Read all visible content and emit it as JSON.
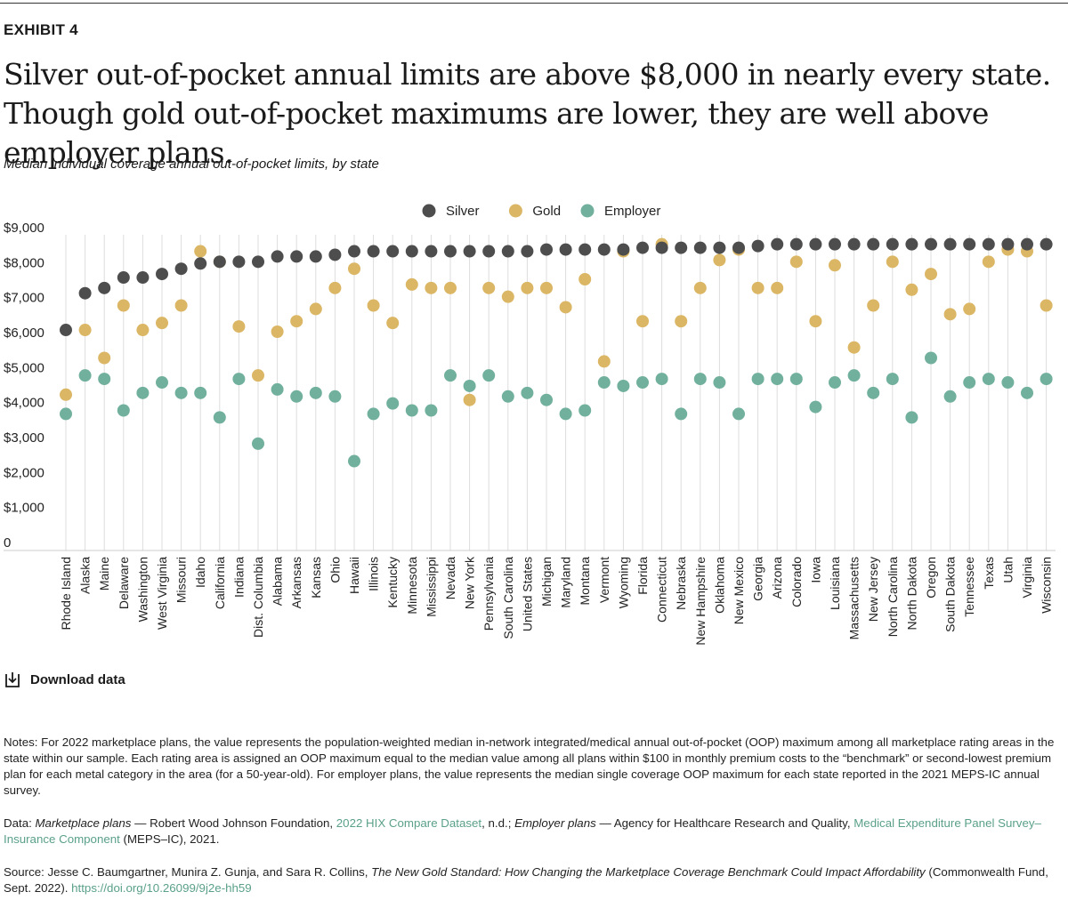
{
  "header": {
    "exhibit": "EXHIBIT 4",
    "title": "Silver out-of-pocket annual limits are above $8,000 in nearly every state. Though gold out-of-pocket maximums are lower, they are well above employer plans.",
    "subtitle": "Median individual coverage annual out-of-pocket limits, by state"
  },
  "colors": {
    "silver": "#4d4d4d",
    "gold": "#dbb664",
    "employer": "#72b09e",
    "grid": "#dddddd",
    "link": "#5aa08a"
  },
  "download": {
    "label": "Download data",
    "icon": "download-icon"
  },
  "chart_data": {
    "type": "scatter",
    "title": "Median individual coverage annual out-of-pocket limits, by state",
    "ylim": [
      0,
      9000
    ],
    "yticks": [
      "$9,000",
      "$8,000",
      "$7,000",
      "$6,000",
      "$5,000",
      "$4,000",
      "$3,000",
      "$2,000",
      "$1,000",
      "0"
    ],
    "ytick_values": [
      9000,
      8000,
      7000,
      6000,
      5000,
      4000,
      3000,
      2000,
      1000,
      0
    ],
    "legend_position": "top-center",
    "categories": [
      "Rhode Island",
      "Alaska",
      "Maine",
      "Delaware",
      "Washington",
      "West Virginia",
      "Missouri",
      "Idaho",
      "California",
      "Indiana",
      "Dist. Columbia",
      "Alabama",
      "Arkansas",
      "Kansas",
      "Ohio",
      "Hawaii",
      "Illinois",
      "Kentucky",
      "Minnesota",
      "Mississippi",
      "Nevada",
      "New York",
      "Pennsylvania",
      "South Carolina",
      "United States",
      "Michigan",
      "Maryland",
      "Montana",
      "Vermont",
      "Wyoming",
      "Florida",
      "Connecticut",
      "Nebraska",
      "New Hampshire",
      "Oklahoma",
      "New Mexico",
      "Georgia",
      "Arizona",
      "Colorado",
      "Iowa",
      "Louisiana",
      "Massachusetts",
      "New Jersey",
      "North Carolina",
      "North Dakota",
      "Oregon",
      "South Dakota",
      "Tennessee",
      "Texas",
      "Utah",
      "Virginia",
      "Wisconsin"
    ],
    "series": [
      {
        "name": "Gold",
        "values": [
          4200,
          6050,
          5250,
          6750,
          6050,
          6250,
          6750,
          8300,
          8000,
          6150,
          4750,
          6000,
          6300,
          6650,
          7250,
          7800,
          6750,
          6250,
          7350,
          7250,
          7250,
          4050,
          7250,
          7000,
          7250,
          7250,
          6700,
          7500,
          5150,
          8300,
          6300,
          8500,
          6300,
          7250,
          8050,
          8350,
          7250,
          7250,
          8000,
          6300,
          7900,
          5550,
          6750,
          8000,
          7200,
          7650,
          6500,
          6650,
          8000,
          8350,
          8300,
          6750
        ]
      },
      {
        "name": "Employer",
        "values": [
          3650,
          4750,
          4650,
          3750,
          4250,
          4550,
          4250,
          4250,
          3550,
          4650,
          2800,
          4350,
          4150,
          4250,
          4150,
          2300,
          3650,
          3950,
          3750,
          3750,
          4750,
          4450,
          4750,
          4150,
          4250,
          4050,
          3650,
          3750,
          4550,
          4450,
          4550,
          4650,
          3650,
          4650,
          4550,
          3650,
          4650,
          4650,
          4650,
          3850,
          4550,
          4750,
          4250,
          4650,
          3550,
          5250,
          4150,
          4550,
          4650,
          4550,
          4250,
          4650
        ]
      },
      {
        "name": "Silver",
        "values": [
          6050,
          7100,
          7250,
          7550,
          7550,
          7650,
          7800,
          7950,
          8000,
          8000,
          8000,
          8150,
          8150,
          8150,
          8200,
          8300,
          8300,
          8300,
          8300,
          8300,
          8300,
          8300,
          8300,
          8300,
          8300,
          8350,
          8350,
          8350,
          8350,
          8350,
          8400,
          8400,
          8400,
          8400,
          8400,
          8400,
          8450,
          8500,
          8500,
          8500,
          8500,
          8500,
          8500,
          8500,
          8500,
          8500,
          8500,
          8500,
          8500,
          8500,
          8500,
          8500
        ]
      }
    ],
    "legend": [
      "Silver",
      "Gold",
      "Employer"
    ]
  },
  "notes": {
    "text": "Notes: For 2022 marketplace plans, the value represents the population-weighted median in-network integrated/medical annual out-of-pocket (OOP) maximum among all marketplace rating areas in the state within our sample. Each rating area is assigned an OOP maximum equal to the median value among all plans within $100 in monthly premium costs to the “benchmark” or second-lowest premium plan for each metal category in the area (for a 50-year-old). For employer plans, the value represents the median single coverage OOP maximum for each state reported in the 2021 MEPS-IC annual survey."
  },
  "data_source": {
    "prefix": "Data: ",
    "mkt_label": "Marketplace plans",
    "mkt_text": " — Robert Wood Johnson Foundation, ",
    "link1": "2022 HIX Compare Dataset",
    "mid": ", n.d.; ",
    "emp_label": "Employer plans",
    "emp_text": " — Agency for Healthcare Research and Quality, ",
    "link2": "Medical Expenditure Panel Survey–Insurance Component",
    "suffix": " (MEPS–IC), 2021."
  },
  "source": {
    "prefix": "Source: Jesse C. Baumgartner, Munira Z. Gunja, and Sara R. Collins, ",
    "pub_title": "The New Gold Standard: How Changing the Marketplace Coverage Benchmark Could Impact Affordability",
    "pub_text": " (Commonwealth Fund, Sept. 2022). ",
    "doi": "https://doi.org/10.26099/9j2e-hh59"
  }
}
